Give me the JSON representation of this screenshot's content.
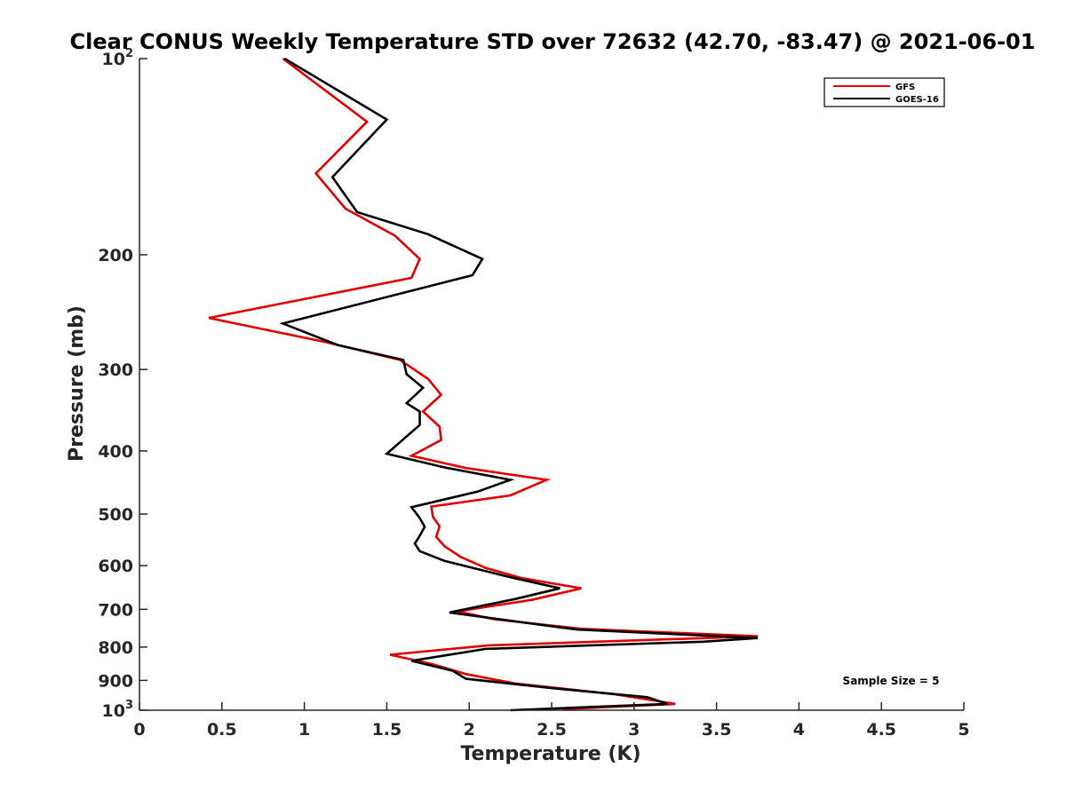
{
  "chart_data": {
    "type": "line",
    "title": "Clear CONUS Weekly Temperature STD over 72632 (42.70, -83.47) @ 2021-06-01",
    "xlabel": "Temperature (K)",
    "ylabel": "Pressure (mb)",
    "xlim": [
      0,
      5
    ],
    "ylim": [
      100,
      1000
    ],
    "y_scale": "log",
    "y_reversed": true,
    "grid": false,
    "legend_position": "top-right",
    "x_ticks": [
      {
        "value": 0,
        "label": "0"
      },
      {
        "value": 0.5,
        "label": "0.5"
      },
      {
        "value": 1,
        "label": "1"
      },
      {
        "value": 1.5,
        "label": "1.5"
      },
      {
        "value": 2,
        "label": "2"
      },
      {
        "value": 2.5,
        "label": "2.5"
      },
      {
        "value": 3,
        "label": "3"
      },
      {
        "value": 3.5,
        "label": "3.5"
      },
      {
        "value": 4,
        "label": "4"
      },
      {
        "value": 4.5,
        "label": "4.5"
      },
      {
        "value": 5,
        "label": "5"
      }
    ],
    "y_ticks": [
      {
        "value": 100,
        "base": "10",
        "sup": "2"
      },
      {
        "value": 200,
        "label": "200"
      },
      {
        "value": 300,
        "label": "300"
      },
      {
        "value": 400,
        "label": "400"
      },
      {
        "value": 500,
        "label": "500"
      },
      {
        "value": 600,
        "label": "600"
      },
      {
        "value": 700,
        "label": "700"
      },
      {
        "value": 800,
        "label": "800"
      },
      {
        "value": 900,
        "label": "900"
      },
      {
        "value": 1000,
        "base": "10",
        "sup": "3"
      }
    ],
    "annotation": "Sample Size = 5",
    "series": [
      {
        "name": "GFS",
        "color": "#e00000",
        "points": [
          [
            0.87,
            100
          ],
          [
            1.38,
            125
          ],
          [
            1.07,
            150
          ],
          [
            1.25,
            170
          ],
          [
            1.55,
            187
          ],
          [
            1.7,
            203
          ],
          [
            1.65,
            217
          ],
          [
            0.42,
            250
          ],
          [
            1.12,
            272
          ],
          [
            1.58,
            290
          ],
          [
            1.75,
            310
          ],
          [
            1.83,
            328
          ],
          [
            1.72,
            348
          ],
          [
            1.82,
            367
          ],
          [
            1.83,
            385
          ],
          [
            1.65,
            407
          ],
          [
            1.98,
            425
          ],
          [
            2.47,
            443
          ],
          [
            2.25,
            468
          ],
          [
            1.77,
            487
          ],
          [
            1.78,
            505
          ],
          [
            1.82,
            522
          ],
          [
            1.8,
            542
          ],
          [
            1.85,
            560
          ],
          [
            1.95,
            582
          ],
          [
            2.1,
            605
          ],
          [
            2.32,
            627
          ],
          [
            2.68,
            650
          ],
          [
            2.38,
            677
          ],
          [
            1.93,
            705
          ],
          [
            2.15,
            725
          ],
          [
            2.68,
            750
          ],
          [
            3.75,
            770
          ],
          [
            2.12,
            795
          ],
          [
            1.52,
            822
          ],
          [
            1.78,
            850
          ],
          [
            1.98,
            880
          ],
          [
            2.28,
            910
          ],
          [
            2.88,
            945
          ],
          [
            3.25,
            978
          ],
          [
            2.57,
            996
          ]
        ]
      },
      {
        "name": "GOES-16",
        "color": "#000000",
        "points": [
          [
            0.88,
            100
          ],
          [
            1.5,
            124
          ],
          [
            1.17,
            152
          ],
          [
            1.32,
            172
          ],
          [
            1.75,
            186
          ],
          [
            2.08,
            203
          ],
          [
            2.02,
            215
          ],
          [
            0.87,
            255
          ],
          [
            1.2,
            275
          ],
          [
            1.6,
            290
          ],
          [
            1.62,
            305
          ],
          [
            1.72,
            320
          ],
          [
            1.62,
            338
          ],
          [
            1.7,
            348
          ],
          [
            1.7,
            365
          ],
          [
            1.5,
            404
          ],
          [
            1.85,
            424
          ],
          [
            2.25,
            443
          ],
          [
            2.05,
            462
          ],
          [
            1.65,
            488
          ],
          [
            1.7,
            507
          ],
          [
            1.73,
            523
          ],
          [
            1.7,
            540
          ],
          [
            1.67,
            555
          ],
          [
            1.7,
            570
          ],
          [
            1.85,
            590
          ],
          [
            2.25,
            625
          ],
          [
            2.55,
            650
          ],
          [
            2.28,
            675
          ],
          [
            1.88,
            708
          ],
          [
            2.65,
            752
          ],
          [
            3.75,
            775
          ],
          [
            3.42,
            785
          ],
          [
            2.1,
            805
          ],
          [
            1.65,
            840
          ],
          [
            1.9,
            870
          ],
          [
            1.98,
            895
          ],
          [
            2.5,
            925
          ],
          [
            3.08,
            955
          ],
          [
            3.2,
            978
          ],
          [
            2.25,
            1000
          ]
        ]
      }
    ]
  }
}
